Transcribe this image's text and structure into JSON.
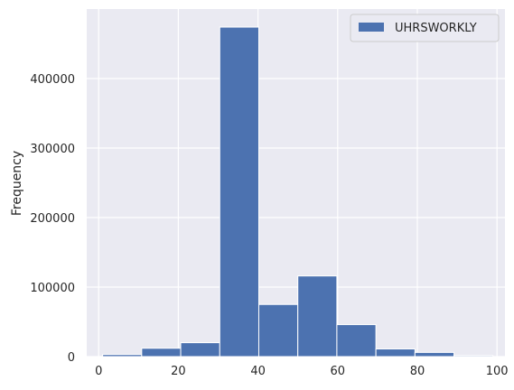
{
  "chart_data": {
    "type": "bar",
    "title": "",
    "xlabel": "",
    "ylabel": "Frequency",
    "bin_edges": [
      1,
      10.8,
      20.6,
      30.4,
      40.2,
      50,
      59.8,
      69.6,
      79.4,
      89.2,
      99
    ],
    "values": [
      3000,
      12000,
      20000,
      474000,
      75000,
      116000,
      46000,
      11000,
      6000,
      1500
    ],
    "xlim": [
      -3,
      102
    ],
    "ylim": [
      0,
      500000
    ],
    "xticks": [
      0,
      20,
      40,
      60,
      80,
      100
    ],
    "yticks": [
      0,
      100000,
      200000,
      300000,
      400000
    ],
    "grid": true,
    "legend": {
      "placement": "top-right",
      "entries": [
        "UHRSWORKLY"
      ]
    },
    "colors": {
      "bar": "#4c72b0",
      "plot_bg": "#eaeaf2",
      "grid": "#ffffff"
    }
  }
}
